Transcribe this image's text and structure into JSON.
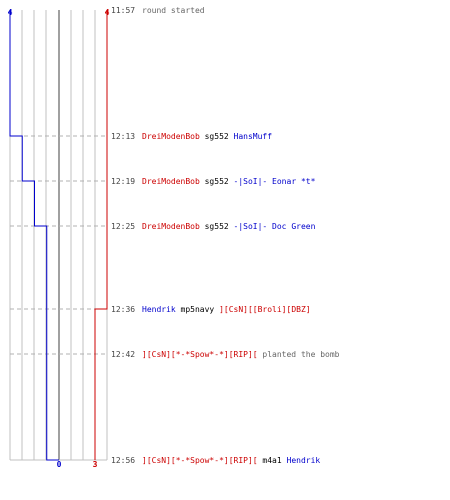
{
  "colors": {
    "team_blue": "#0000cc",
    "team_red": "#cc0000",
    "time": "#444444",
    "neutral_text": "#000000",
    "event_text": "#666666",
    "grid": "#c0c0c0",
    "center_line": "#808080",
    "dash": "#b0b0b0"
  },
  "scores": {
    "blue_start": "4",
    "red_start": "4",
    "blue_end": "0",
    "red_end": "3"
  },
  "blue_counts": [
    4,
    3,
    2,
    1,
    1,
    0
  ],
  "red_counts": [
    4,
    4,
    4,
    4,
    3,
    3
  ],
  "events": [
    {
      "time": "11:57",
      "parts": [
        {
          "text": "round started",
          "style": "event"
        }
      ]
    },
    {
      "time": "12:13",
      "parts": [
        {
          "text": "DreiModenBob",
          "style": "red"
        },
        {
          "text": "sg552",
          "style": "neutral"
        },
        {
          "text": "HansMuff",
          "style": "blue"
        }
      ]
    },
    {
      "time": "12:19",
      "parts": [
        {
          "text": "DreiModenBob",
          "style": "red"
        },
        {
          "text": "sg552",
          "style": "neutral"
        },
        {
          "text": "-|SoI|- Eonar *t*",
          "style": "blue"
        }
      ]
    },
    {
      "time": "12:25",
      "parts": [
        {
          "text": "DreiModenBob",
          "style": "red"
        },
        {
          "text": "sg552",
          "style": "neutral"
        },
        {
          "text": "-|SoI|- Doc Green",
          "style": "blue"
        }
      ]
    },
    {
      "time": "12:36",
      "parts": [
        {
          "text": "Hendrik",
          "style": "blue"
        },
        {
          "text": "mp5navy",
          "style": "neutral"
        },
        {
          "text": "][CsN][[Broli][DBZ]",
          "style": "red"
        }
      ]
    },
    {
      "time": "12:42",
      "parts": [
        {
          "text": "][CsN][*-*Spow*-*][RIP][",
          "style": "red"
        },
        {
          "text": "planted the bomb",
          "style": "event"
        }
      ]
    },
    {
      "time": "12:56",
      "parts": [
        {
          "text": "][CsN][*-*Spow*-*][RIP][",
          "style": "red"
        },
        {
          "text": "m4a1",
          "style": "neutral"
        },
        {
          "text": "Hendrik",
          "style": "blue"
        }
      ]
    }
  ]
}
